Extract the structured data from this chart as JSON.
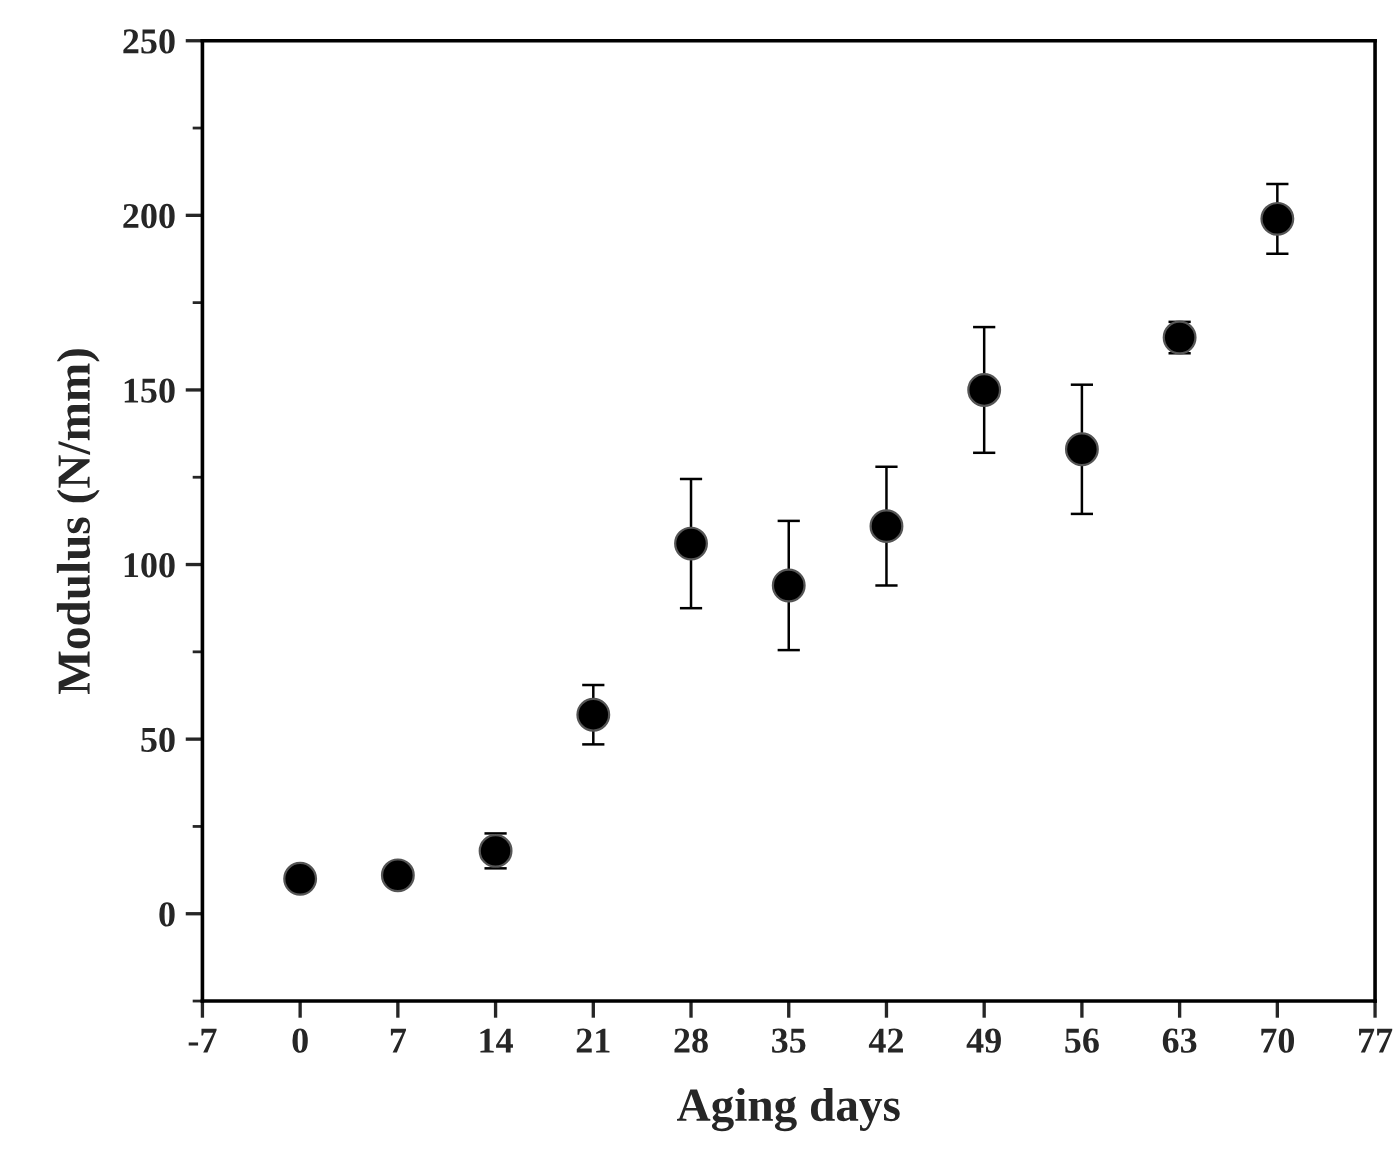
{
  "chart_data": {
    "type": "scatter",
    "xlabel": "Aging days",
    "ylabel": "Modulus (N/mm)",
    "x": [
      0,
      7,
      14,
      21,
      28,
      35,
      42,
      49,
      56,
      63,
      70
    ],
    "series": [
      {
        "color": "#000000",
        "values": [
          10,
          11,
          18,
          57,
          106,
          94,
          111,
          150,
          133,
          165,
          199
        ],
        "errors": [
          2,
          1,
          5,
          8.5,
          18.5,
          18.5,
          17,
          18,
          18.5,
          4.5,
          10
        ]
      }
    ],
    "xlim": [
      -7,
      77
    ],
    "xticks": [
      -7,
      0,
      7,
      14,
      21,
      28,
      35,
      42,
      49,
      56,
      63,
      70,
      77
    ],
    "ylim": [
      -25,
      250
    ],
    "yticks": [
      0,
      50,
      100,
      150,
      200,
      250
    ],
    "grid": false,
    "legend": false,
    "marker": "circle"
  }
}
